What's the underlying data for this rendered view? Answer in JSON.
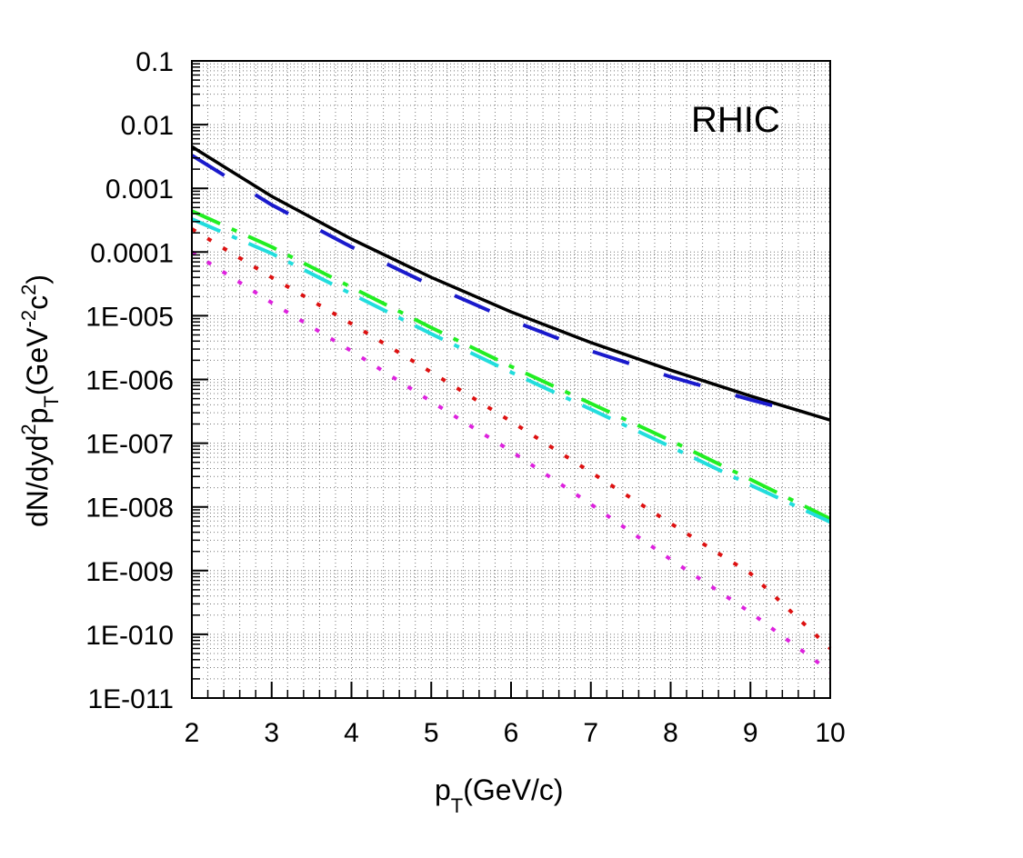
{
  "chart_data": {
    "type": "line",
    "annotation": "RHIC",
    "xlabel": {
      "main": "p",
      "sub": "T",
      "rest": "(GeV/c)"
    },
    "ylabel": {
      "a": "dN/dyd",
      "sup1": "2",
      "b": "p",
      "sub": "T",
      "c": "(GeV",
      "sup2": "-2",
      "d": "c",
      "sup3": "2",
      "e": ")"
    },
    "xlim": [
      2,
      10
    ],
    "ylim": [
      1e-11,
      0.1
    ],
    "yscale": "log",
    "grid": true,
    "x_ticks": [
      2,
      3,
      4,
      5,
      6,
      7,
      8,
      9,
      10
    ],
    "x_tick_labels": [
      "2",
      "3",
      "4",
      "5",
      "6",
      "7",
      "8",
      "9",
      "10"
    ],
    "y_ticks": [
      1e-11,
      1e-10,
      1e-09,
      1e-08,
      1e-07,
      1e-06,
      1e-05,
      0.0001,
      0.001,
      0.01,
      0.1
    ],
    "y_tick_labels": [
      "1E-011",
      "1E-010",
      "1E-009",
      "1E-008",
      "1E-007",
      "1E-006",
      "1E-005",
      "0.0001",
      "0.001",
      "0.01",
      "0.1"
    ],
    "series": [
      {
        "style": "solid",
        "color": "#000000",
        "x": [
          2,
          3,
          4,
          5,
          6,
          7,
          8,
          9,
          10
        ],
        "y": [
          0.0045,
          0.00075,
          0.00016,
          4e-05,
          1.15e-05,
          3.8e-06,
          1.4e-06,
          5.5e-07,
          2.3e-07
        ]
      },
      {
        "style": "long-dash",
        "color": "#1a1acc",
        "x": [
          2,
          3,
          4,
          5,
          6,
          7,
          8,
          9,
          9.5
        ],
        "y": [
          0.0033,
          0.00055,
          0.00012,
          3e-05,
          8.5e-06,
          2.8e-06,
          1.1e-06,
          4.8e-07,
          3.3e-07
        ]
      },
      {
        "style": "dash-dot",
        "color": "#22ee22",
        "x": [
          2,
          3,
          4,
          5,
          6,
          7,
          8,
          9,
          10
        ],
        "y": [
          0.00044,
          0.00012,
          2.8e-05,
          6.5e-06,
          1.6e-06,
          4.2e-07,
          1.1e-07,
          2.7e-08,
          6.5e-09
        ]
      },
      {
        "style": "dash-dot",
        "color": "#22dddd",
        "x": [
          2,
          3,
          4,
          5,
          6,
          7,
          8,
          9,
          10
        ],
        "y": [
          0.00033,
          9.5e-05,
          2.2e-05,
          5.2e-06,
          1.3e-06,
          3.4e-07,
          8.8e-08,
          2.2e-08,
          5.8e-09
        ]
      },
      {
        "style": "dotted",
        "color": "#dd1111",
        "x": [
          2,
          3,
          4,
          5,
          6,
          7,
          8,
          9,
          10
        ],
        "y": [
          0.00023,
          4e-05,
          7.5e-06,
          1.3e-06,
          2.2e-07,
          3.5e-08,
          5.5e-09,
          9e-10,
          6e-11
        ]
      },
      {
        "style": "dotted",
        "color": "#dd22dd",
        "x": [
          2,
          3,
          4,
          5,
          6,
          7,
          8,
          9,
          10
        ],
        "y": [
          0.0001,
          1.6e-05,
          2.8e-06,
          4.5e-07,
          7.5e-08,
          1.1e-08,
          1.5e-09,
          2.2e-10,
          2.6e-11
        ]
      }
    ]
  }
}
